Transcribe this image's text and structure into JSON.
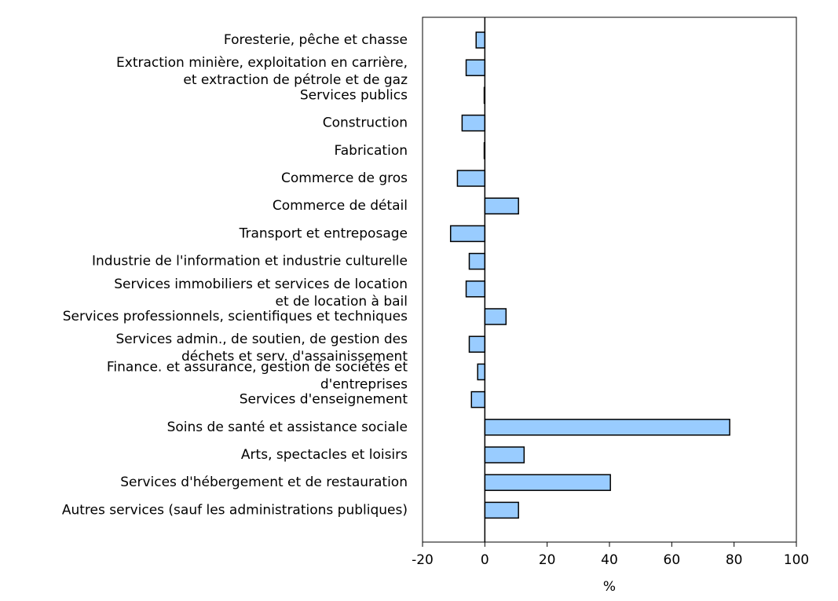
{
  "chart_data": {
    "type": "barh",
    "categories": [
      "Foresterie, pêche et chasse",
      "Extraction minière, exploitation en carrière,\net extraction de pétrole et de gaz",
      "Services publics",
      "Construction",
      "Fabrication",
      "Commerce de gros",
      "Commerce de détail",
      "Transport et entreposage",
      "Industrie de l'information et industrie culturelle",
      "Services immobiliers et services de location\net de location à bail",
      "Services professionnels, scientifiques et techniques",
      "Services admin., de soutien, de gestion des\ndéchets et serv. d'assainissement",
      "Finance. et assurance, gestion de sociétés et\nd'entreprises",
      "Services d'enseignement",
      "Soins de santé et assistance sociale",
      "Arts, spectacles et loisirs",
      "Services d'hébergement et de restauration",
      "Autres services (sauf les administrations publiques)"
    ],
    "values": [
      -2.8,
      -6,
      -0.2,
      -7.3,
      -0.2,
      -8.8,
      10.8,
      -11,
      -5,
      -6,
      6.8,
      -5,
      -2.3,
      -4.3,
      78.6,
      12.6,
      40.3,
      10.8
    ],
    "color": "#99ccff",
    "xlim": [
      -20,
      100
    ],
    "xticks": [
      -20,
      0,
      20,
      40,
      60,
      80,
      100
    ],
    "xlabel": "%"
  }
}
